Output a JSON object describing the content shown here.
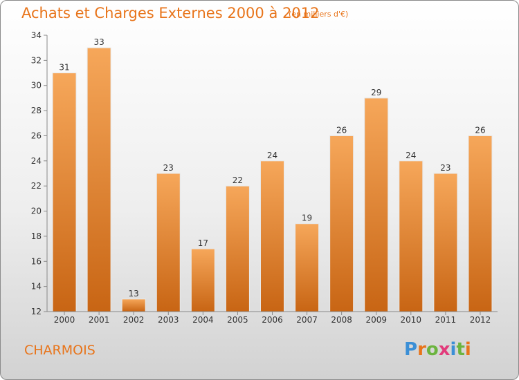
{
  "header": {
    "title": "Achats et Charges Externes 2000 à 2012",
    "subtitle": "(en milliers d'€)"
  },
  "footer": {
    "commune": "CHARMOIS",
    "logo": "Proxiti"
  },
  "colors": {
    "bar_light": "#f6a75a",
    "bar_dark": "#c86514",
    "title": "#e8741a"
  },
  "chart_data": {
    "type": "bar",
    "categories": [
      "2000",
      "2001",
      "2002",
      "2003",
      "2004",
      "2005",
      "2006",
      "2007",
      "2008",
      "2009",
      "2010",
      "2011",
      "2012"
    ],
    "values": [
      31,
      33,
      13,
      23,
      17,
      22,
      24,
      19,
      26,
      29,
      24,
      23,
      26
    ],
    "title": "Achats et Charges Externes 2000 à 2012",
    "xlabel": "",
    "ylabel": "",
    "ylim": [
      12,
      34
    ],
    "yticks": [
      12,
      14,
      16,
      18,
      20,
      22,
      24,
      26,
      28,
      30,
      32,
      34
    ],
    "grid": false,
    "data_labels": true
  }
}
